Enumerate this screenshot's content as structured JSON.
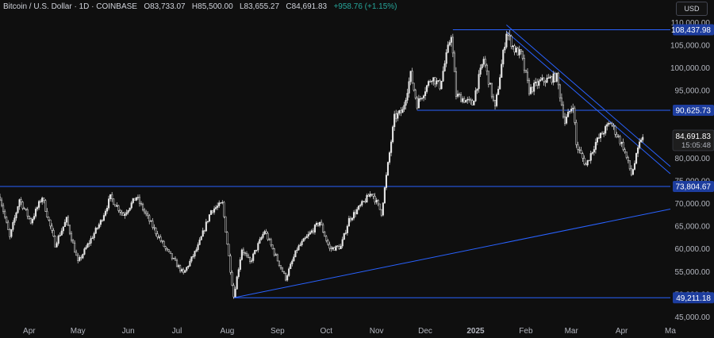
{
  "header": {
    "symbol": "Bitcoin / U.S. Dollar",
    "interval": "1D",
    "exchange": "COINBASE",
    "open": "O83,733.07",
    "high": "H85,500.00",
    "low": "L83,655.27",
    "close": "C84,691.83",
    "change": "+958.76 (+1.15%)"
  },
  "currency_button": "USD",
  "colors": {
    "background": "#0f0f0f",
    "candle": "#e6e6e6",
    "line": "#2962ff",
    "price_tag": "#1d3d9e",
    "axis_text": "#b2b5be"
  },
  "chart_data": {
    "type": "candlestick",
    "x_ticks": [
      "Apr",
      "May",
      "Jun",
      "Jul",
      "Aug",
      "Sep",
      "Oct",
      "Nov",
      "Dec",
      "2025",
      "Feb",
      "Mar",
      "Apr",
      "Ma"
    ],
    "x_tick_positions": [
      "2024-04-01",
      "2024-05-01",
      "2024-06-01",
      "2024-07-01",
      "2024-08-01",
      "2024-09-01",
      "2024-10-01",
      "2024-11-01",
      "2024-12-01",
      "2025-01-01",
      "2025-02-01",
      "2025-03-01",
      "2025-04-01",
      "2025-05-01"
    ],
    "xlim": [
      "2024-03-14",
      "2025-05-01"
    ],
    "y_ticks": [
      "45,000.00",
      "50,000.00",
      "55,000.00",
      "60,000.00",
      "65,000.00",
      "70,000.00",
      "75,000.00",
      "80,000.00",
      "95,000.00",
      "100,000.00",
      "105,000.00",
      "110,000.00"
    ],
    "ylim": [
      44000,
      111500
    ],
    "levels": [
      {
        "label": "108,437.98",
        "value": 108437.98
      },
      {
        "label": "90,625.73",
        "value": 90625.73
      },
      {
        "label": "73,804.67",
        "value": 73804.67
      },
      {
        "label": "49,211.18",
        "value": 49211.18
      }
    ],
    "current_price": {
      "label": "84,691.83",
      "countdown": "15:05:48",
      "value": 84691.83
    },
    "trendlines": [
      {
        "from": [
          "2024-08-05",
          49211.18
        ],
        "to": [
          "2025-05-01",
          68800
        ]
      },
      {
        "from": [
          "2025-01-20",
          109500
        ],
        "to": [
          "2025-05-01",
          78200
        ]
      },
      {
        "from": [
          "2025-01-20",
          108000
        ],
        "to": [
          "2025-05-01",
          76600
        ]
      }
    ],
    "price_path": [
      [
        "2024-03-14",
        71500
      ],
      [
        "2024-03-20",
        62500
      ],
      [
        "2024-03-26",
        71000
      ],
      [
        "2024-04-02",
        66000
      ],
      [
        "2024-04-09",
        71500
      ],
      [
        "2024-04-17",
        61000
      ],
      [
        "2024-04-24",
        66500
      ],
      [
        "2024-05-01",
        57000
      ],
      [
        "2024-05-08",
        61500
      ],
      [
        "2024-05-15",
        66000
      ],
      [
        "2024-05-21",
        71400
      ],
      [
        "2024-05-29",
        67500
      ],
      [
        "2024-06-06",
        71500
      ],
      [
        "2024-06-14",
        66200
      ],
      [
        "2024-06-24",
        60000
      ],
      [
        "2024-07-05",
        54500
      ],
      [
        "2024-07-14",
        60500
      ],
      [
        "2024-07-22",
        68500
      ],
      [
        "2024-07-29",
        70000
      ],
      [
        "2024-08-05",
        49500
      ],
      [
        "2024-08-10",
        60000
      ],
      [
        "2024-08-15",
        57000
      ],
      [
        "2024-08-24",
        64000
      ],
      [
        "2024-09-01",
        57500
      ],
      [
        "2024-09-06",
        53500
      ],
      [
        "2024-09-13",
        60000
      ],
      [
        "2024-09-20",
        63000
      ],
      [
        "2024-09-27",
        66000
      ],
      [
        "2024-10-03",
        60000
      ],
      [
        "2024-10-10",
        60500
      ],
      [
        "2024-10-15",
        66500
      ],
      [
        "2024-10-21",
        69000
      ],
      [
        "2024-10-29",
        72500
      ],
      [
        "2024-11-04",
        68000
      ],
      [
        "2024-11-07",
        76000
      ],
      [
        "2024-11-12",
        89000
      ],
      [
        "2024-11-17",
        90500
      ],
      [
        "2024-11-22",
        98500
      ],
      [
        "2024-11-26",
        92000
      ],
      [
        "2024-12-05",
        98000
      ],
      [
        "2024-12-10",
        96000
      ],
      [
        "2024-12-17",
        107500
      ],
      [
        "2024-12-20",
        94000
      ],
      [
        "2024-12-30",
        92000
      ],
      [
        "2025-01-06",
        102000
      ],
      [
        "2025-01-13",
        91000
      ],
      [
        "2025-01-20",
        108000
      ],
      [
        "2025-01-25",
        104000
      ],
      [
        "2025-01-29",
        103000
      ],
      [
        "2025-02-03",
        95000
      ],
      [
        "2025-02-10",
        97000
      ],
      [
        "2025-02-20",
        98000
      ],
      [
        "2025-02-25",
        88000
      ],
      [
        "2025-03-02",
        92000
      ],
      [
        "2025-03-04",
        83000
      ],
      [
        "2025-03-10",
        78500
      ],
      [
        "2025-03-16",
        83500
      ],
      [
        "2025-03-25",
        88000
      ],
      [
        "2025-04-02",
        82500
      ],
      [
        "2025-04-07",
        76500
      ],
      [
        "2025-04-09",
        79000
      ],
      [
        "2025-04-13",
        84500
      ],
      [
        "2025-04-14",
        84691.83
      ]
    ]
  }
}
